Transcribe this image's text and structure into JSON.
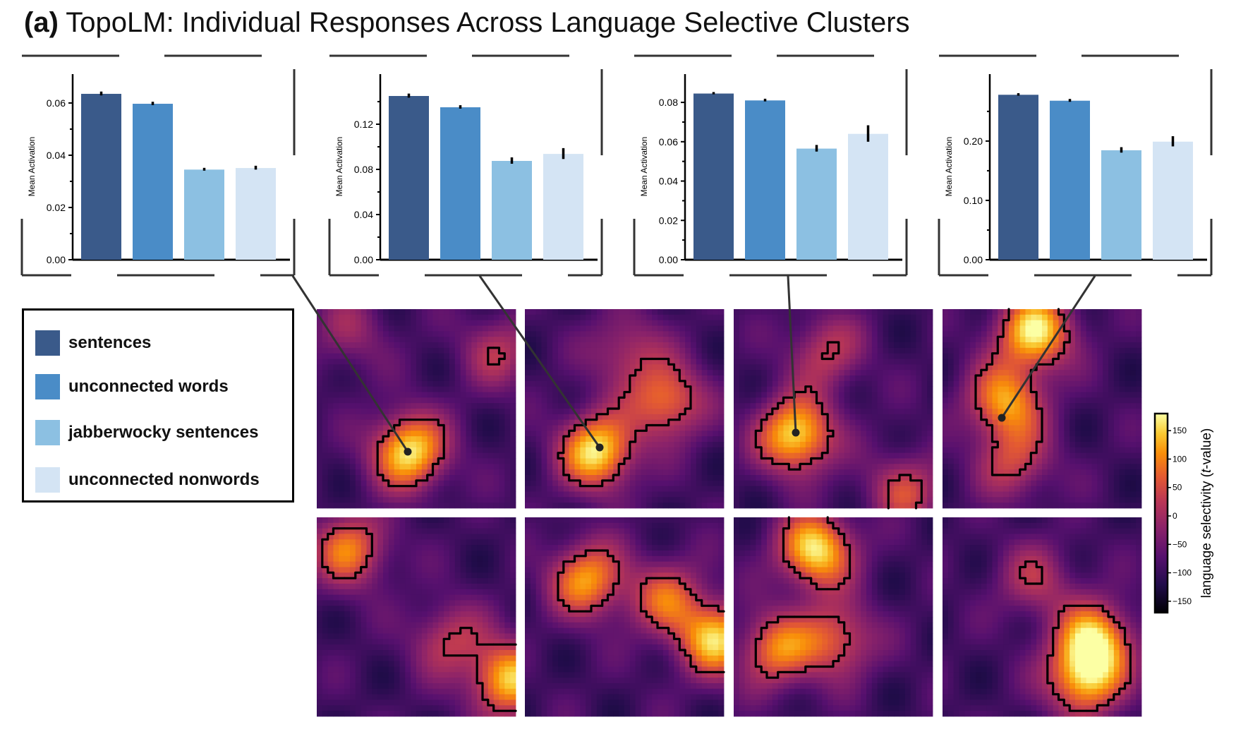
{
  "title": {
    "panel_label": "(a)",
    "text": "TopoLM: Individual Responses Across Language Selective Clusters"
  },
  "legend": {
    "items": [
      {
        "label": "sentences",
        "color": "#3a5a8a"
      },
      {
        "label": "unconnected words",
        "color": "#4a8cc7"
      },
      {
        "label": "jabberwocky sentences",
        "color": "#8cc0e2"
      },
      {
        "label": "unconnected nonwords",
        "color": "#d4e4f4"
      }
    ]
  },
  "colorbar": {
    "label_prefix": "language selectivity (",
    "label_italic": "t",
    "label_suffix": "-value)",
    "ticks": [
      150,
      100,
      50,
      0,
      -50,
      -100,
      -150
    ],
    "range": [
      -170,
      180
    ],
    "colormap": "inferno"
  },
  "chart_data": [
    {
      "type": "bar",
      "ylabel": "Mean Activation",
      "categories": [
        "sentences",
        "unconnected words",
        "jabberwocky sentences",
        "unconnected nonwords"
      ],
      "values": [
        0.0635,
        0.0597,
        0.0345,
        0.0351
      ],
      "errors": [
        0.0006,
        0.0005,
        0.0004,
        0.0006
      ],
      "ylim": [
        0,
        0.067
      ],
      "yticks": [
        "0.00",
        "0.02",
        "0.04",
        "0.06"
      ]
    },
    {
      "type": "bar",
      "ylabel": "Mean Activation",
      "categories": [
        "sentences",
        "unconnected words",
        "jabberwocky sentences",
        "unconnected nonwords"
      ],
      "values": [
        0.145,
        0.135,
        0.0875,
        0.0937
      ],
      "errors": [
        0.0015,
        0.0012,
        0.0025,
        0.0045
      ],
      "ylim": [
        0,
        0.155
      ],
      "yticks": [
        "0.04",
        "0.08",
        "0.12"
      ],
      "yticks_zero": "0.00"
    },
    {
      "type": "bar",
      "ylabel": "Mean Activation",
      "categories": [
        "sentences",
        "unconnected words",
        "jabberwocky sentences",
        "unconnected nonwords"
      ],
      "values": [
        0.0845,
        0.081,
        0.0565,
        0.064
      ],
      "errors": [
        0.0004,
        0.0005,
        0.0015,
        0.004
      ],
      "ylim": [
        0,
        0.089
      ],
      "yticks": [
        "0.00",
        "0.02",
        "0.04",
        "0.06",
        "0.08"
      ]
    },
    {
      "type": "bar",
      "ylabel": "Mean Activation",
      "categories": [
        "sentences",
        "unconnected words",
        "jabberwocky sentences",
        "unconnected nonwords"
      ],
      "values": [
        0.278,
        0.268,
        0.1845,
        0.199
      ],
      "errors": [
        0.0015,
        0.0018,
        0.004,
        0.008
      ],
      "ylim": [
        0,
        0.295
      ],
      "yticks": [
        "0.00",
        "0.10",
        "0.20"
      ]
    },
    {
      "type": "heatmap",
      "description_free": true,
      "grids": 8,
      "value_range": [
        -170,
        180
      ]
    }
  ]
}
